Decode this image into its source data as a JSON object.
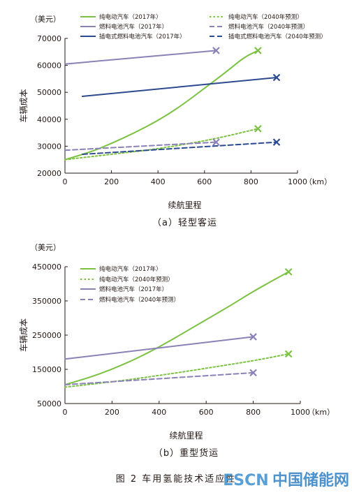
{
  "figure_caption": "图 2    车用氢能技术适应性",
  "watermark": {
    "latin": "ESCN",
    "cjk": "中国储能网"
  },
  "colors": {
    "green": "#7cc242",
    "purple": "#8a82b6",
    "navy": "#2c4a8f",
    "axis": "#231815"
  },
  "chart_data": [
    {
      "type": "line",
      "subtitle": "（a）轻型客运",
      "xlabel": "续航里程",
      "ylabel": "车辆成本",
      "y_unit": "（美元）",
      "x_unit": "（km）",
      "xlim": [
        0,
        1000
      ],
      "ylim": [
        20000,
        70000
      ],
      "xticks": [
        0,
        200,
        400,
        600,
        800,
        1000
      ],
      "yticks": [
        20000,
        30000,
        40000,
        50000,
        60000,
        70000
      ],
      "legend_position": "top",
      "series": [
        {
          "name": "纯电动汽车（2017年）",
          "color": "green",
          "dash": "solid",
          "end_marker": true,
          "points": [
            [
              0,
              25000
            ],
            [
              100,
              27500
            ],
            [
              200,
              31000
            ],
            [
              300,
              35000
            ],
            [
              400,
              39500
            ],
            [
              500,
              45000
            ],
            [
              600,
              51500
            ],
            [
              700,
              58000
            ],
            [
              770,
              63000
            ],
            [
              830,
              65500
            ]
          ]
        },
        {
          "name": "纯电动汽车（2040年预测）",
          "color": "green",
          "dash": "dot",
          "end_marker": true,
          "points": [
            [
              0,
              25000
            ],
            [
              200,
              27000
            ],
            [
              400,
              29000
            ],
            [
              600,
              32000
            ],
            [
              700,
              33800
            ],
            [
              830,
              36500
            ]
          ]
        },
        {
          "name": "燃料电池汽车（2017年）",
          "color": "purple",
          "dash": "solid",
          "end_marker": true,
          "points": [
            [
              0,
              60500
            ],
            [
              650,
              65500
            ]
          ]
        },
        {
          "name": "燃料电池汽车（2040年预测）",
          "color": "purple",
          "dash": "dash",
          "end_marker": true,
          "points": [
            [
              0,
              28500
            ],
            [
              650,
              31500
            ]
          ]
        },
        {
          "name": "插电式燃料电池汽车（2017年）",
          "color": "navy",
          "dash": "solid",
          "end_marker": true,
          "points": [
            [
              75,
              48500
            ],
            [
              910,
              55500
            ]
          ]
        },
        {
          "name": "插电式燃料电池汽车（2040年预测）",
          "color": "navy",
          "dash": "dash",
          "end_marker": true,
          "points": [
            [
              75,
              27000
            ],
            [
              910,
              31500
            ]
          ]
        }
      ]
    },
    {
      "type": "line",
      "subtitle": "（b）重型货运",
      "xlabel": "续航里程",
      "ylabel": "车辆成本",
      "y_unit": "（美元）",
      "x_unit": "（km）",
      "xlim": [
        0,
        1000
      ],
      "ylim": [
        50000,
        450000
      ],
      "xticks": [
        0,
        200,
        400,
        600,
        800,
        1000
      ],
      "yticks": [
        50000,
        150000,
        250000,
        350000,
        450000
      ],
      "legend_position": "top-left",
      "series": [
        {
          "name": "纯电动汽车（2017年）",
          "color": "green",
          "dash": "solid",
          "end_marker": true,
          "points": [
            [
              0,
              105000
            ],
            [
              100,
              125000
            ],
            [
              200,
              150000
            ],
            [
              300,
              180000
            ],
            [
              400,
              215000
            ],
            [
              500,
              255000
            ],
            [
              600,
              295000
            ],
            [
              700,
              335000
            ],
            [
              800,
              378000
            ],
            [
              950,
              435000
            ]
          ]
        },
        {
          "name": "纯电动汽车（2040年预测）",
          "color": "green",
          "dash": "dot",
          "end_marker": true,
          "points": [
            [
              0,
              98000
            ],
            [
              200,
              113000
            ],
            [
              400,
              132000
            ],
            [
              600,
              153000
            ],
            [
              800,
              175000
            ],
            [
              950,
              195000
            ]
          ]
        },
        {
          "name": "燃料电池汽车（2017年）",
          "color": "purple",
          "dash": "solid",
          "end_marker": true,
          "points": [
            [
              0,
              180000
            ],
            [
              800,
              245000
            ]
          ]
        },
        {
          "name": "燃料电池汽车（2040年预测）",
          "color": "purple",
          "dash": "dash",
          "end_marker": true,
          "points": [
            [
              0,
              105000
            ],
            [
              800,
              140000
            ]
          ]
        }
      ]
    }
  ]
}
